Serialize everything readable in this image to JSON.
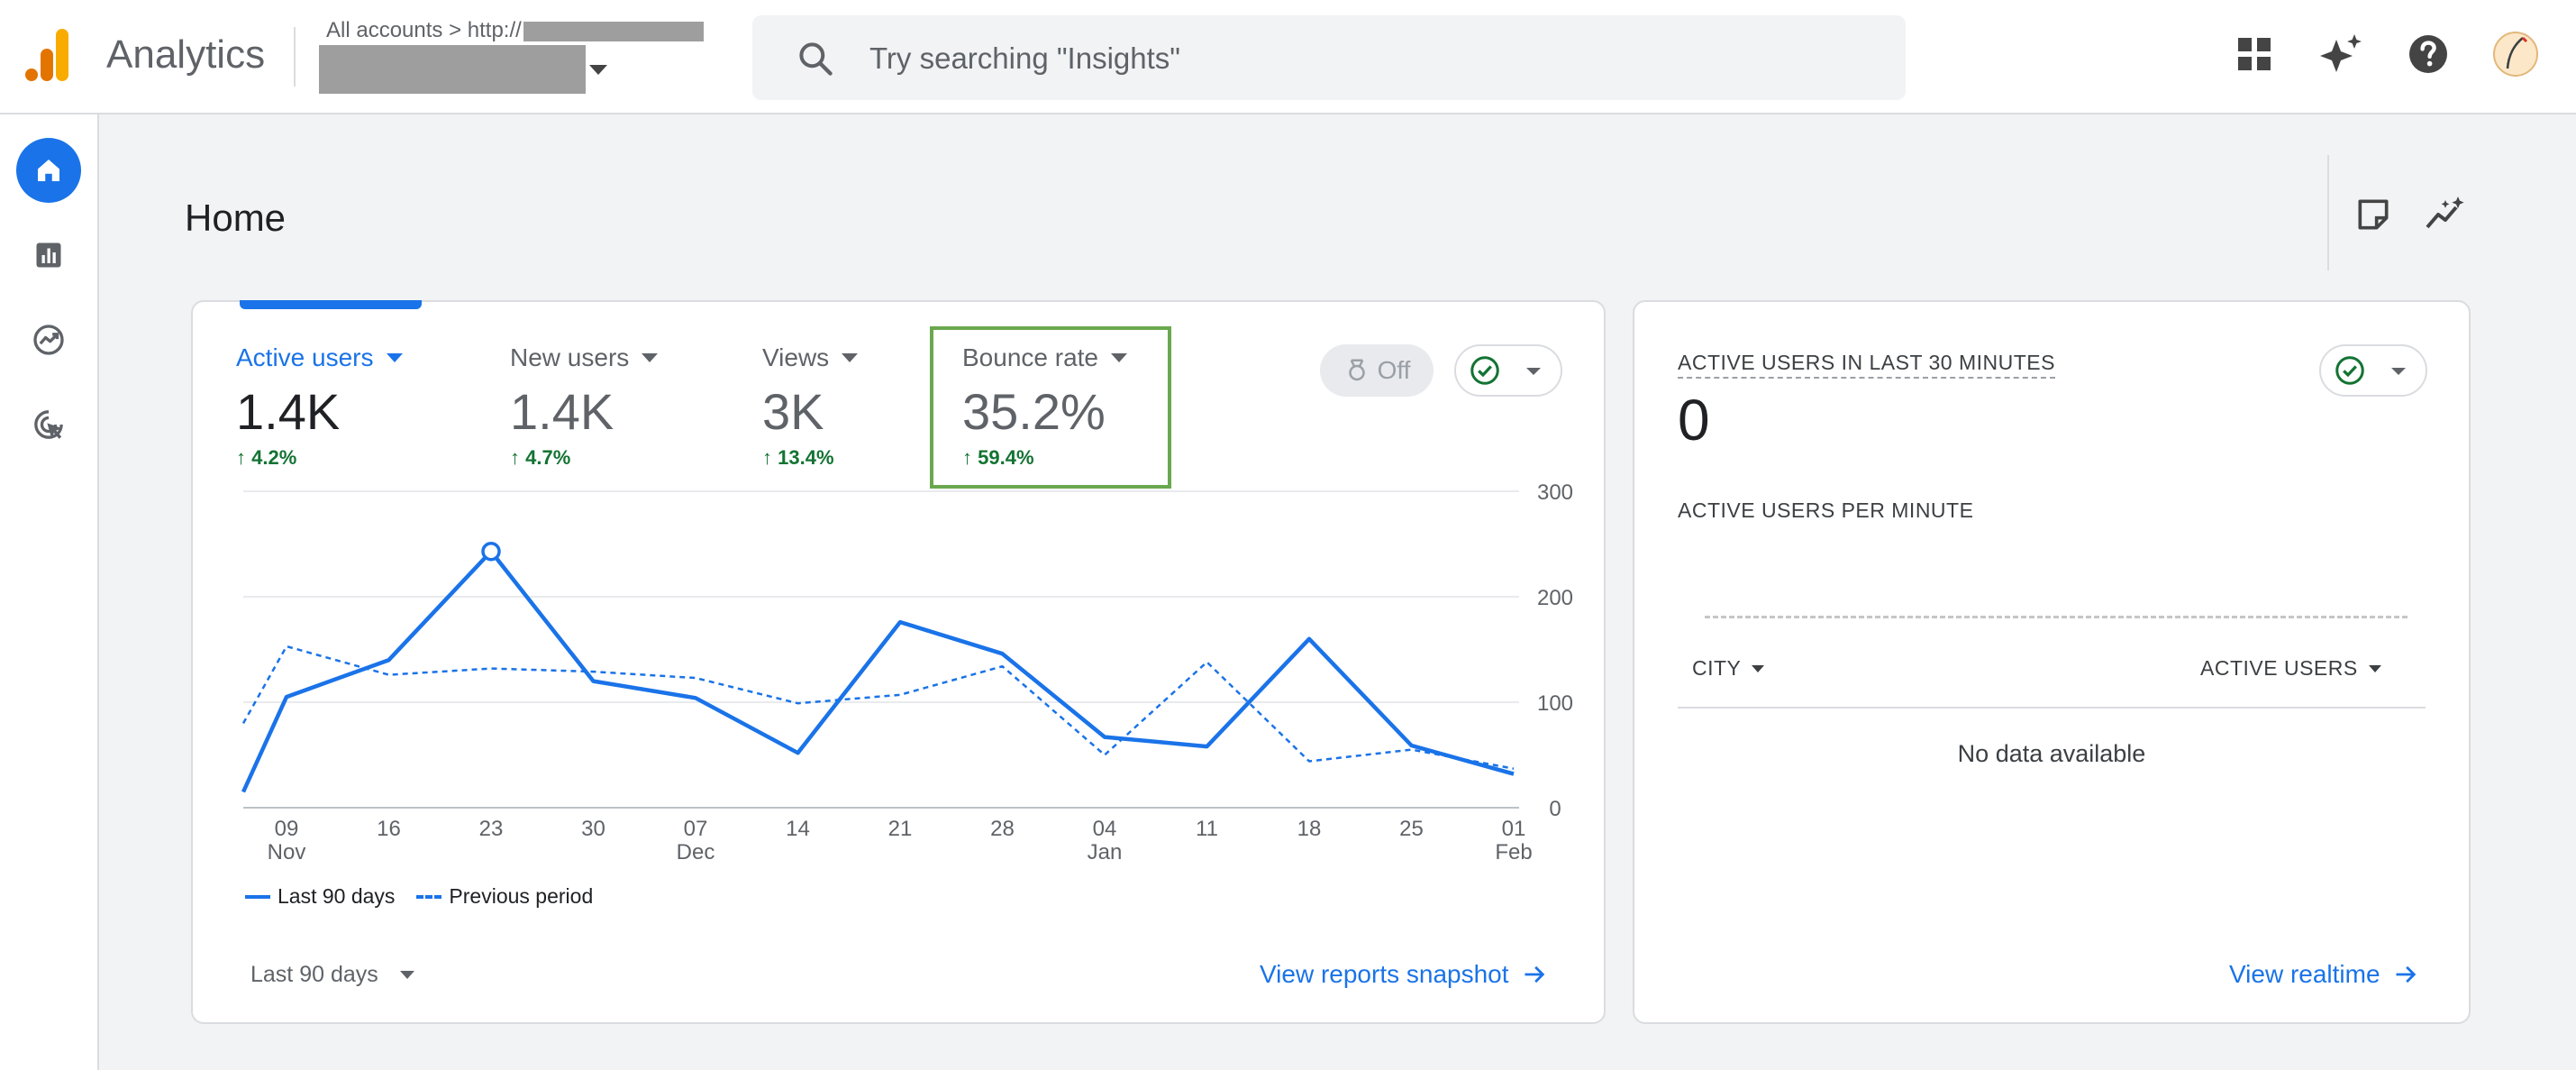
{
  "app": {
    "name": "Analytics"
  },
  "breadcrumb": {
    "all_accounts": "All accounts",
    "separator": ">",
    "url_prefix": "http://"
  },
  "search": {
    "placeholder": "Try searching \"Insights\""
  },
  "topbar_icons": [
    "apps-grid-icon",
    "sparkle-icon",
    "help-icon",
    "avatar"
  ],
  "sidebar": {
    "items": [
      "home-icon",
      "reports-icon",
      "explore-icon",
      "advertising-icon"
    ],
    "active": "home-icon"
  },
  "page": {
    "title": "Home"
  },
  "overview_card": {
    "metrics": [
      {
        "label": "Active users",
        "value": "1.4K",
        "delta": "4.2%",
        "active": true
      },
      {
        "label": "New users",
        "value": "1.4K",
        "delta": "4.7%"
      },
      {
        "label": "Views",
        "value": "3K",
        "delta": "13.4%"
      },
      {
        "label": "Bounce rate",
        "value": "35.2%",
        "delta": "59.4%"
      }
    ],
    "toggle_label": "Off",
    "range_label": "Last 90 days",
    "link": "View reports snapshot"
  },
  "chart_data": {
    "type": "line",
    "x": [
      "09 Nov",
      "16 Nov",
      "23 Nov",
      "30 Nov",
      "07 Dec",
      "14 Dec",
      "21 Dec",
      "28 Dec",
      "04 Jan",
      "11 Jan",
      "18 Jan",
      "25 Jan",
      "01 Feb"
    ],
    "x_ticks": [
      {
        "top": "09",
        "bottom": "Nov"
      },
      {
        "top": "16",
        "bottom": ""
      },
      {
        "top": "23",
        "bottom": ""
      },
      {
        "top": "30",
        "bottom": ""
      },
      {
        "top": "07",
        "bottom": "Dec"
      },
      {
        "top": "14",
        "bottom": ""
      },
      {
        "top": "21",
        "bottom": ""
      },
      {
        "top": "28",
        "bottom": ""
      },
      {
        "top": "04",
        "bottom": "Jan"
      },
      {
        "top": "11",
        "bottom": ""
      },
      {
        "top": "18",
        "bottom": ""
      },
      {
        "top": "25",
        "bottom": ""
      },
      {
        "top": "01",
        "bottom": "Feb"
      }
    ],
    "series": [
      {
        "name": "Last 90 days",
        "style": "solid",
        "start": 15,
        "values": [
          105,
          140,
          243,
          120,
          104,
          52,
          176,
          146,
          67,
          58,
          160,
          59,
          32
        ]
      },
      {
        "name": "Previous period",
        "style": "dashed",
        "start": 80,
        "values": [
          153,
          126,
          132,
          129,
          123,
          99,
          107,
          134,
          50,
          138,
          44,
          55,
          37
        ]
      }
    ],
    "highlight_index": 2,
    "y_ticks": [
      0,
      100,
      200,
      300
    ],
    "ylim": [
      0,
      300
    ],
    "y_axis_position": "right",
    "grid": true,
    "color": "#1a73e8"
  },
  "realtime_card": {
    "title": "ACTIVE USERS IN LAST 30 MINUTES",
    "value": "0",
    "subtitle": "ACTIVE USERS PER MINUTE",
    "table": {
      "col_city": "CITY",
      "col_users": "ACTIVE USERS",
      "empty": "No data available"
    },
    "link": "View realtime"
  },
  "colors": {
    "accent": "#1a73e8",
    "positive": "#137333",
    "highlight_box": "#6aa84f",
    "logo_orange": "#f9ab00",
    "logo_dark": "#e37400"
  }
}
